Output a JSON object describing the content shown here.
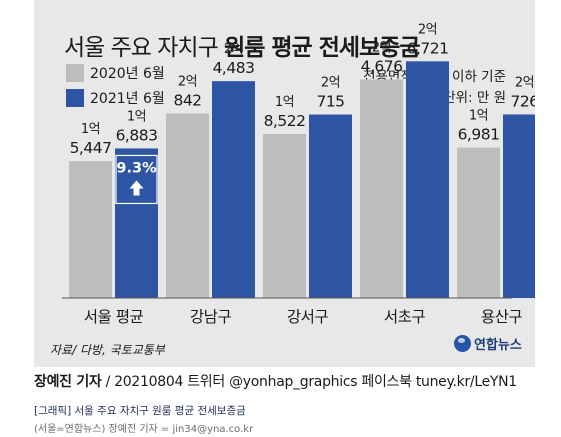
{
  "colors": {
    "background": "#e8e8e8",
    "series_2020": "#bdbdbd",
    "series_2021": "#2e55a3",
    "change_box": "#2e55a3"
  },
  "title": {
    "light": "서울 주요 자치구",
    "bold": "원룸 평균 전세보증금"
  },
  "notes": {
    "area": "전용면적 30㎡ 이하 기준",
    "unit": "단위: 만 원"
  },
  "source": "자료/ 다방, 국토교통부",
  "logo": "연합뉴스",
  "credit": {
    "name": "장예진 기자",
    "rest": " / 20210804 트위터 @yonhap_graphics  페이스북 tuney.kr/LeYN1"
  },
  "caption": {
    "line1": "[그래픽] 서울 주요 자치구 원룸 평균 전세보증금",
    "line2": "(서울=연합뉴스) 장예진 기자 = jin34@yna.co.kr"
  },
  "chart_data": {
    "type": "bar",
    "categories": [
      "서울 평균",
      "강남구",
      "강서구",
      "서초구",
      "용산구"
    ],
    "series": [
      {
        "name": "2020년 6월",
        "values": [
          15447,
          20842,
          18522,
          24676,
          16981
        ],
        "labels_top": [
          "1억",
          "2억",
          "1억",
          "2억",
          "1억"
        ],
        "labels_bottom": [
          "5,447",
          "842",
          "8,522",
          "4,676",
          "6,981"
        ]
      },
      {
        "name": "2021년 6월",
        "values": [
          16883,
          24483,
          20715,
          26721,
          20726
        ],
        "labels_top": [
          "1억",
          "2억",
          "2억",
          "2억",
          "2억"
        ],
        "labels_bottom": [
          "6,883",
          "4,483",
          "715",
          "6,721",
          "726"
        ]
      }
    ],
    "annotation": {
      "category": "서울 평균",
      "text": "9.3%",
      "direction": "up"
    },
    "ylim": [
      0,
      28000
    ],
    "legend": "top-left",
    "grid": false
  }
}
